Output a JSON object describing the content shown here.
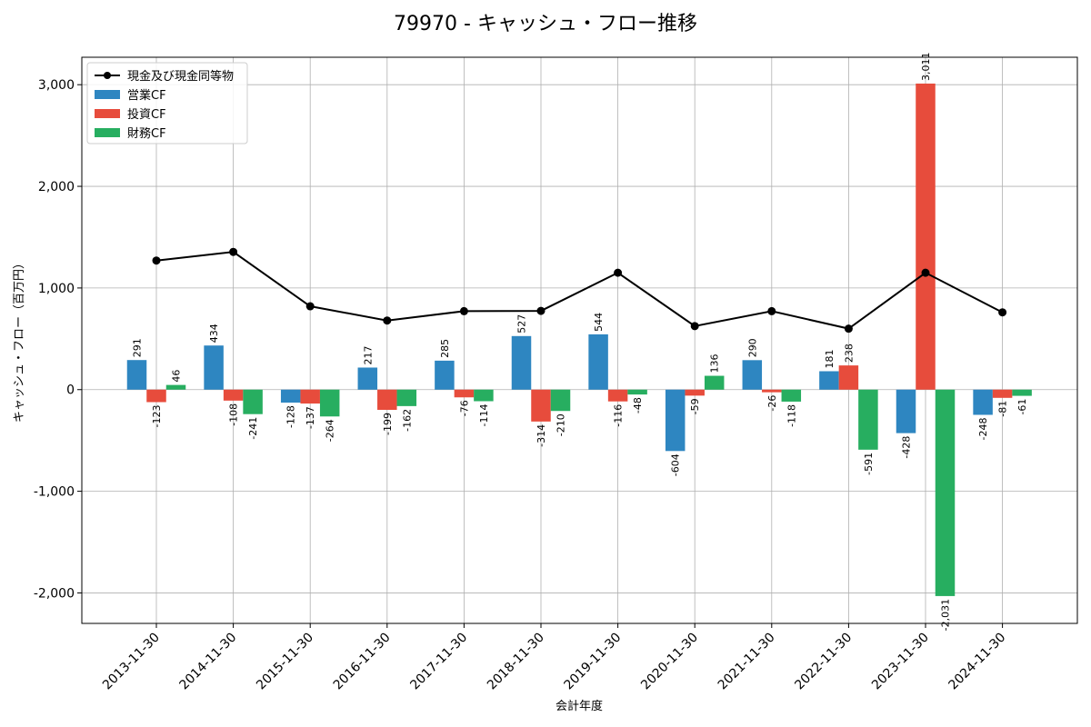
{
  "chart_data": {
    "type": "bar",
    "title": "79970 - キャッシュ・フロー推移",
    "xlabel": "会計年度",
    "ylabel": "キャッシュ・フロー（百万円）",
    "ylim": [
      -2300,
      3270
    ],
    "yticks": [
      -2000,
      -1000,
      0,
      1000,
      2000,
      3000
    ],
    "ytick_labels": [
      "-2,000",
      "-1,000",
      "0",
      "1,000",
      "2,000",
      "3,000"
    ],
    "grid": true,
    "legend_position": "top-left",
    "categories": [
      "2013-11-30",
      "2014-11-30",
      "2015-11-30",
      "2016-11-30",
      "2017-11-30",
      "2018-11-30",
      "2019-11-30",
      "2020-11-30",
      "2021-11-30",
      "2022-11-30",
      "2023-11-30",
      "2024-11-30"
    ],
    "series": [
      {
        "name": "営業CF",
        "kind": "bar",
        "color": "#2e86c1",
        "values": [
          291,
          434,
          -128,
          217,
          285,
          527,
          544,
          -604,
          290,
          181,
          -428,
          -248
        ]
      },
      {
        "name": "投資CF",
        "kind": "bar",
        "color": "#e74c3c",
        "values": [
          -123,
          -108,
          -137,
          -199,
          -76,
          -314,
          -116,
          -59,
          -26,
          238,
          3011,
          -81
        ]
      },
      {
        "name": "財務CF",
        "kind": "bar",
        "color": "#27ae60",
        "values": [
          46,
          -241,
          -264,
          -162,
          -114,
          -210,
          -48,
          136,
          -118,
          -591,
          -2031,
          -61
        ]
      },
      {
        "name": "現金及び現金同等物",
        "kind": "line",
        "color": "#000000",
        "values": [
          1270,
          1355,
          820,
          680,
          772,
          775,
          1150,
          625,
          772,
          600,
          1150,
          760
        ]
      }
    ]
  }
}
